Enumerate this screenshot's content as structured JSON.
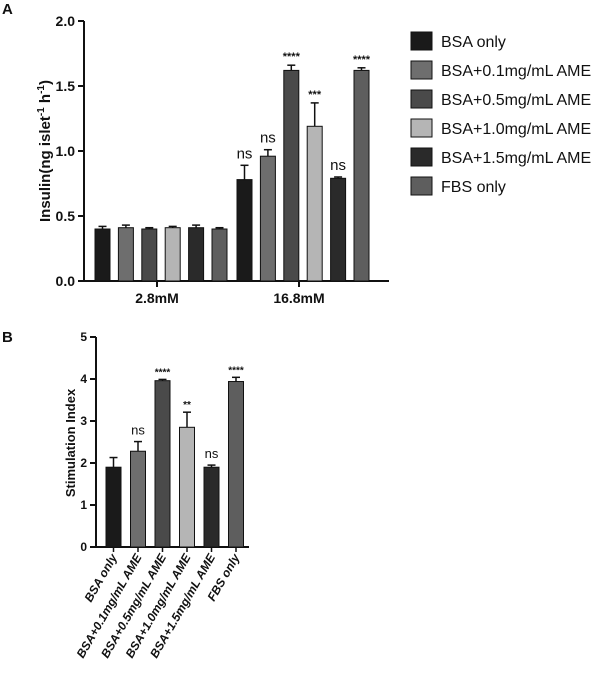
{
  "panels": {
    "a_label": "A",
    "b_label": "B"
  },
  "colors": {
    "BSA only": "#1a1a1a",
    "BSA+0.1mg/mL AME": "#6e6e6e",
    "BSA+0.5mg/mL AME": "#4a4a4a",
    "BSA+1.0mg/mL AME": "#b5b5b5",
    "BSA+1.5mg/mL AME": "#2a2a2a",
    "FBS only": "#5e5e5e"
  },
  "chart_data": [
    {
      "type": "bar",
      "panel": "A",
      "title": "",
      "xlabel": "",
      "ylabel": "Insulin(ng islet-1 h-1)",
      "ylabel_parts": {
        "base": "Insulin(ng islet",
        "sup1": "-1",
        "mid": " h",
        "sup2": "-1",
        "end": ")"
      },
      "ylim": [
        0,
        2.0
      ],
      "yticks": [
        "0.0",
        "0.5",
        "1.0",
        "1.5",
        "2.0"
      ],
      "categories": [
        "2.8mM",
        "16.8mM"
      ],
      "legend_position": "right",
      "series": [
        {
          "name": "BSA only",
          "values": [
            0.4,
            0.78
          ],
          "errors": [
            0.02,
            0.11
          ],
          "sig": [
            "",
            "ns"
          ]
        },
        {
          "name": "BSA+0.1mg/mL AME",
          "values": [
            0.41,
            0.96
          ],
          "errors": [
            0.02,
            0.05
          ],
          "sig": [
            "",
            "ns"
          ]
        },
        {
          "name": "BSA+0.5mg/mL AME",
          "values": [
            0.4,
            1.62
          ],
          "errors": [
            0.01,
            0.04
          ],
          "sig": [
            "",
            "****"
          ]
        },
        {
          "name": "BSA+1.0mg/mL AME",
          "values": [
            0.41,
            1.19
          ],
          "errors": [
            0.01,
            0.18
          ],
          "sig": [
            "",
            "***"
          ]
        },
        {
          "name": "BSA+1.5mg/mL AME",
          "values": [
            0.41,
            0.79
          ],
          "errors": [
            0.02,
            0.01
          ],
          "sig": [
            "",
            "ns"
          ]
        },
        {
          "name": "FBS only",
          "values": [
            0.4,
            1.62
          ],
          "errors": [
            0.01,
            0.02
          ],
          "sig": [
            "",
            "****"
          ]
        }
      ]
    },
    {
      "type": "bar",
      "panel": "B",
      "title": "",
      "xlabel": "",
      "ylabel": "Stimulation Index",
      "ylim": [
        0,
        5
      ],
      "yticks": [
        "0",
        "1",
        "2",
        "3",
        "4",
        "5"
      ],
      "categories": [
        "BSA only",
        "BSA+0.1mg/mL AME",
        "BSA+0.5mg/mL AME",
        "BSA+1.0mg/mL AME",
        "BSA+1.5mg/mL AME",
        "FBS only"
      ],
      "values": [
        1.9,
        2.28,
        3.96,
        2.85,
        1.9,
        3.94
      ],
      "errors": [
        0.23,
        0.23,
        0.03,
        0.36,
        0.05,
        0.1
      ],
      "sig": [
        "",
        "ns",
        "****",
        "**",
        "ns",
        "****"
      ]
    }
  ]
}
